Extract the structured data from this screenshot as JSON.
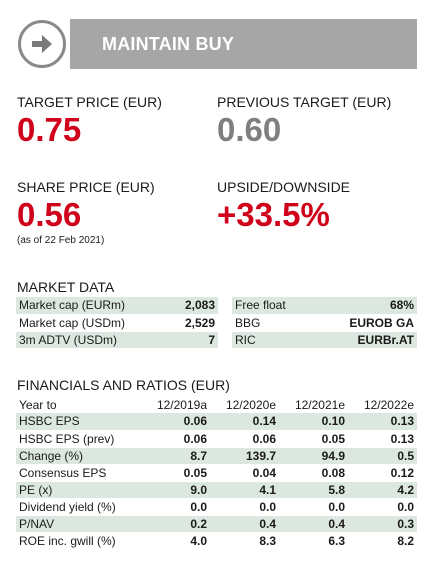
{
  "rating": {
    "icon": "arrow-right-icon",
    "label": "MAINTAIN BUY"
  },
  "kpis": {
    "target_price": {
      "label": "TARGET PRICE (EUR)",
      "value": "0.75"
    },
    "previous_target": {
      "label": "PREVIOUS TARGET (EUR)",
      "value": "0.60"
    },
    "share_price": {
      "label": "SHARE PRICE (EUR)",
      "value": "0.56",
      "note": "(as of 22 Feb 2021)"
    },
    "upside": {
      "label": "UPSIDE/DOWNSIDE",
      "value": "+33.5%"
    }
  },
  "market_data": {
    "title": "MARKET DATA",
    "left": [
      {
        "label": "Market cap (EURm)",
        "value": "2,083"
      },
      {
        "label": "Market cap (USDm)",
        "value": "2,529"
      },
      {
        "label": "3m ADTV (USDm)",
        "value": "7"
      }
    ],
    "right": [
      {
        "label": "Free float",
        "value": "68%"
      },
      {
        "label": "BBG",
        "value": "EUROB GA"
      },
      {
        "label": "RIC",
        "value": "EURBr.AT"
      }
    ]
  },
  "financials": {
    "title": "FINANCIALS AND RATIOS (EUR)",
    "header": [
      "Year to",
      "12/2019a",
      "12/2020e",
      "12/2021e",
      "12/2022e"
    ],
    "rows": [
      {
        "label": "HSBC EPS",
        "values": [
          "0.06",
          "0.14",
          "0.10",
          "0.13"
        ]
      },
      {
        "label": "HSBC EPS (prev)",
        "values": [
          "0.06",
          "0.06",
          "0.05",
          "0.13"
        ]
      },
      {
        "label": "Change (%)",
        "values": [
          "8.7",
          "139.7",
          "94.9",
          "0.5"
        ]
      },
      {
        "label": "Consensus EPS",
        "values": [
          "0.05",
          "0.04",
          "0.08",
          "0.12"
        ]
      },
      {
        "label": "PE (x)",
        "values": [
          "9.0",
          "4.1",
          "5.8",
          "4.2"
        ]
      },
      {
        "label": "Dividend yield (%)",
        "values": [
          "0.0",
          "0.0",
          "0.0",
          "0.0"
        ]
      },
      {
        "label": "P/NAV",
        "values": [
          "0.2",
          "0.4",
          "0.4",
          "0.3"
        ]
      },
      {
        "label": "ROE inc. gwill (%)",
        "values": [
          "4.0",
          "8.3",
          "6.3",
          "8.2"
        ]
      }
    ]
  },
  "colors": {
    "accent_red": "#d0021b",
    "grey_value": "#7f7f7f",
    "row_shade": "#dce7df",
    "banner": "#a6a6a6"
  }
}
